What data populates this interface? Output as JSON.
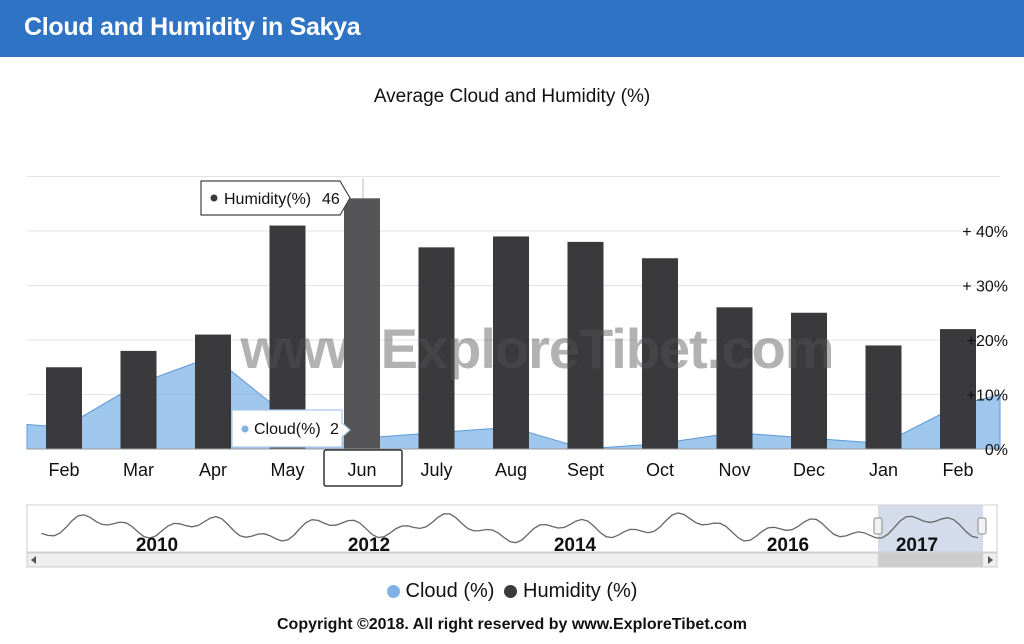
{
  "header": {
    "title": "Cloud and Humidity in Sakya"
  },
  "chart_data": {
    "type": "bar",
    "title": "Average Cloud and Humidity (%)",
    "categories": [
      "Feb",
      "Mar",
      "Apr",
      "May",
      "Jun",
      "July",
      "Aug",
      "Sept",
      "Oct",
      "Nov",
      "Dec",
      "Jan",
      "Feb"
    ],
    "series": [
      {
        "name": "Humidity (%)",
        "type": "bar",
        "color": "#3a3a3d",
        "values": [
          15,
          18,
          21,
          41,
          46,
          37,
          39,
          38,
          35,
          26,
          25,
          19,
          22
        ]
      },
      {
        "name": "Cloud (%)",
        "type": "area",
        "color": "#7fb3e6",
        "values": [
          4,
          12,
          17,
          6,
          2,
          3,
          4,
          0,
          1,
          3,
          2,
          1,
          8
        ]
      }
    ],
    "y_ticks": [
      "0%",
      "+10%",
      "+20%",
      "+ 30%",
      "+ 40%"
    ],
    "ylim": [
      0,
      50
    ],
    "tooltip_humidity": {
      "label": "Humidity(%)",
      "value": "46"
    },
    "tooltip_cloud": {
      "label": "Cloud(%)",
      "value": "2"
    },
    "navigator_years": [
      "2010",
      "2012",
      "2014",
      "2016",
      "2017"
    ],
    "legend": [
      "Cloud (%)",
      "Humidity (%)"
    ],
    "watermark": "www.ExploreTibet.com"
  },
  "footer": {
    "copyright": "Copyright ©2018.  All right reserved by www.ExploreTibet.com"
  }
}
